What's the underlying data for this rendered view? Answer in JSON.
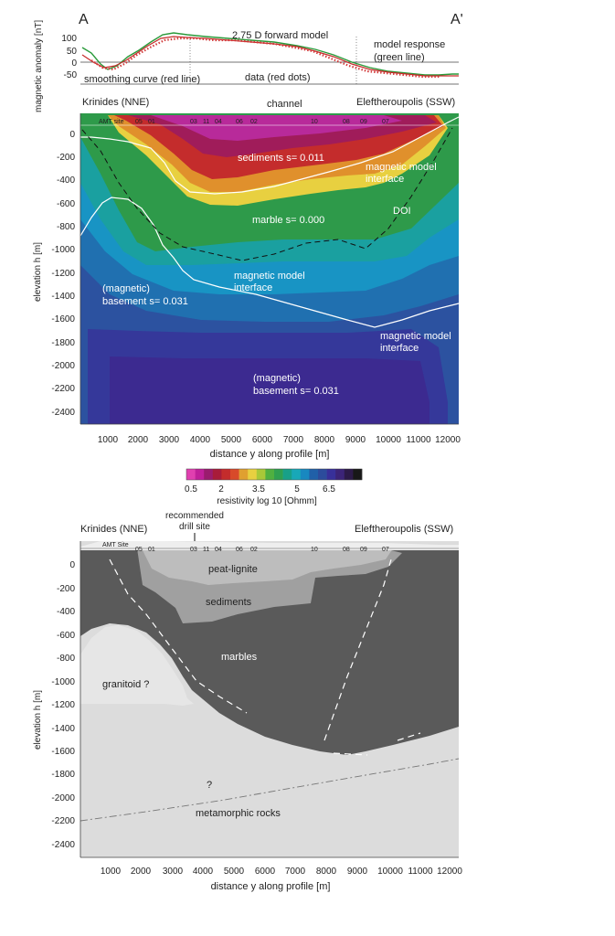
{
  "top_panel": {
    "label_a": "A",
    "label_a_prime": "A'",
    "ylabel": "magnetic anomaly [nT]",
    "yticks": [
      "100",
      "50",
      "0",
      "-50"
    ],
    "forward_model": "2.75 D forward model",
    "model_response": "model response",
    "green_line": "(green line)",
    "smoothing_curve": "smoothing curve (red line)",
    "data_label": "data (red dots)"
  },
  "resistivity_panel": {
    "left_place": "Krinides (NNE)",
    "right_place": "Eleftheroupolis (SSW)",
    "channel": "channel",
    "amt_site": "AMT site",
    "sites": [
      "05",
      "01",
      "03",
      "11",
      "04",
      "06",
      "02",
      "10",
      "08",
      "09",
      "07"
    ],
    "sediments": "sediments s= 0.011",
    "marble": "marble s= 0.000",
    "doi": "DOI",
    "interface_1a": "magnetic model",
    "interface_1b": "interface",
    "interface_2a": "magnetic model",
    "interface_2b": "interface",
    "interface_3a": "magnetic model",
    "interface_3b": "interface",
    "basement1a": "(magnetic)",
    "basement1b": "basement s= 0.031",
    "basement2a": "(magnetic)",
    "basement2b": "basement s= 0.031",
    "ylabel": "elevation h [m]",
    "xlabel": "distance y along profile [m]",
    "yticks": [
      "0",
      "-200",
      "-400",
      "-600",
      "-800",
      "-1000",
      "-1200",
      "-1400",
      "-1600",
      "-1800",
      "-2000",
      "-2200",
      "-2400"
    ],
    "xticks": [
      "1000",
      "2000",
      "3000",
      "4000",
      "5000",
      "6000",
      "7000",
      "8000",
      "9000",
      "10000",
      "11000",
      "12000"
    ]
  },
  "colorbar": {
    "ticks": [
      "0.5",
      "2",
      "3.5",
      "5",
      "6.5"
    ],
    "label": "resistivity log 10 [Ohmm]",
    "colors": [
      "#e040b0",
      "#c0209a",
      "#9a1c6e",
      "#a81c3a",
      "#c42c2c",
      "#d84a2a",
      "#e0a030",
      "#e8d040",
      "#a8c838",
      "#50b040",
      "#30a050",
      "#18a088",
      "#18a8b8",
      "#1888c0",
      "#2060a8",
      "#2c4c9c",
      "#38309a",
      "#3c2478",
      "#2c1a48",
      "#181818"
    ]
  },
  "geology_panel": {
    "left_place": "Krinides (NNE)",
    "right_place": "Eleftheroupolis (SSW)",
    "recommended_1": "recommended",
    "recommended_2": "drill site",
    "amt_site": "AMT Site",
    "sites": [
      "05",
      "01",
      "03",
      "11",
      "04",
      "06",
      "02",
      "10",
      "08",
      "09",
      "07"
    ],
    "peat": "peat-lignite",
    "sediments": "sediments",
    "marbles": "marbles",
    "granitoid": "granitoid ?",
    "question": "?",
    "metamorphic": "metamorphic rocks",
    "ylabel": "elevation h [m]",
    "xlabel": "distance y along profile [m]",
    "yticks": [
      "0",
      "-200",
      "-400",
      "-600",
      "-800",
      "-1000",
      "-1200",
      "-1400",
      "-1600",
      "-1800",
      "-2000",
      "-2200",
      "-2400"
    ],
    "xticks": [
      "1000",
      "2000",
      "3000",
      "4000",
      "5000",
      "6000",
      "7000",
      "8000",
      "9000",
      "10000",
      "11000",
      "12000"
    ]
  }
}
